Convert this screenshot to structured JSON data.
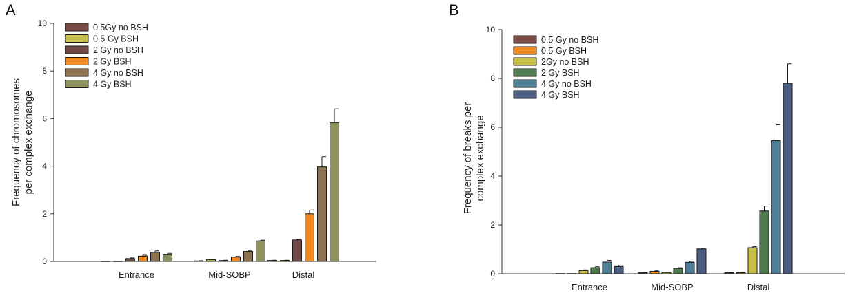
{
  "chart_data": [
    {
      "type": "bar",
      "panel_label": "A",
      "categories": [
        "Entrance",
        "Mid-SOBP",
        "Distal"
      ],
      "ylabel_lines": [
        "Frequency of chromosomes",
        "per complex exchange"
      ],
      "ylim": [
        0,
        10
      ],
      "yticks": [
        "0",
        "2",
        "4",
        "6",
        "8",
        "10"
      ],
      "legend_position": "top-left",
      "series": [
        {
          "name": "0.5Gy no BSH",
          "color": "#7a4a44",
          "values": [
            0.0,
            0.02,
            0.04
          ],
          "errors": [
            0.0,
            0.01,
            0.01
          ]
        },
        {
          "name": "0.5 Gy BSH",
          "color": "#c7c046",
          "values": [
            0.0,
            0.07,
            0.04
          ],
          "errors": [
            0.0,
            0.02,
            0.01
          ]
        },
        {
          "name": "2 Gy no BSH",
          "color": "#6f4a44",
          "values": [
            0.12,
            0.04,
            0.9
          ],
          "errors": [
            0.03,
            0.01,
            0.03
          ]
        },
        {
          "name": "2 Gy BSH",
          "color": "#ef8a22",
          "values": [
            0.22,
            0.18,
            2.0
          ],
          "errors": [
            0.04,
            0.03,
            0.16
          ]
        },
        {
          "name": "4 Gy no BSH",
          "color": "#8c7250",
          "values": [
            0.38,
            0.42,
            3.97
          ],
          "errors": [
            0.06,
            0.04,
            0.43
          ]
        },
        {
          "name": "4 Gy BSH",
          "color": "#8f9360",
          "values": [
            0.27,
            0.86,
            5.83
          ],
          "errors": [
            0.07,
            0.03,
            0.58
          ]
        }
      ]
    },
    {
      "type": "bar",
      "panel_label": "B",
      "categories": [
        "Entrance",
        "Mid-SOBP",
        "Distal"
      ],
      "ylabel_lines": [
        "Frequency of breaks per",
        "complex exchange"
      ],
      "ylim": [
        0,
        10
      ],
      "yticks": [
        "0",
        "2",
        "4",
        "6",
        "8",
        "10"
      ],
      "legend_position": "top-left",
      "series": [
        {
          "name": "0.5 Gy no BSH",
          "color": "#7a4a44",
          "values": [
            0.0,
            0.04,
            0.04
          ],
          "errors": [
            0.0,
            0.01,
            0.01
          ]
        },
        {
          "name": "0.5 Gy BSH",
          "color": "#ef8a22",
          "values": [
            0.0,
            0.1,
            0.04
          ],
          "errors": [
            0.0,
            0.02,
            0.01
          ]
        },
        {
          "name": "2Gy no BSH",
          "color": "#c7c046",
          "values": [
            0.13,
            0.05,
            1.07
          ],
          "errors": [
            0.03,
            0.01,
            0.04
          ]
        },
        {
          "name": "2 Gy BSH",
          "color": "#4f7a50",
          "values": [
            0.25,
            0.22,
            2.57
          ],
          "errors": [
            0.04,
            0.03,
            0.2
          ]
        },
        {
          "name": "4 Gy no BSH",
          "color": "#4f7f96",
          "values": [
            0.48,
            0.47,
            5.45
          ],
          "errors": [
            0.07,
            0.04,
            0.65
          ]
        },
        {
          "name": "4 Gy BSH",
          "color": "#4c5f82",
          "values": [
            0.3,
            1.02,
            7.8
          ],
          "errors": [
            0.05,
            0.03,
            0.8
          ]
        }
      ]
    }
  ]
}
